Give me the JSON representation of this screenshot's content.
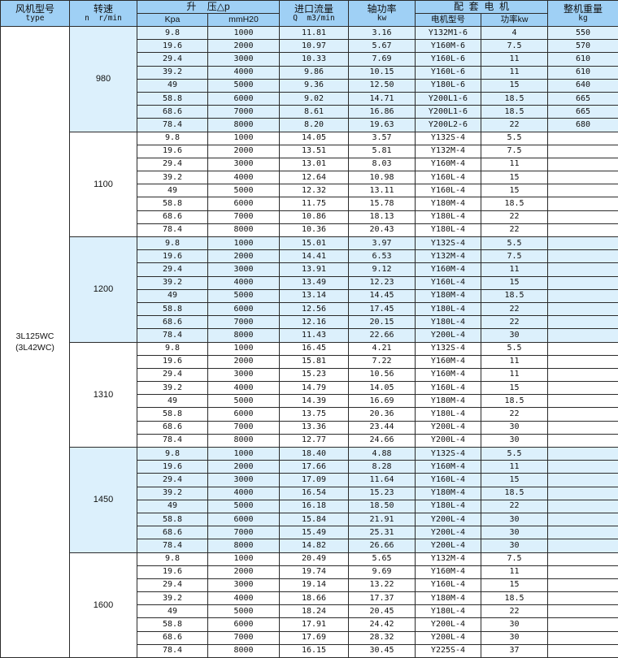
{
  "header": {
    "type_label": "风机型号",
    "type_sub": "type",
    "speed_label": "转速",
    "speed_sub": "n  r/min",
    "pressure_label": "升    压△p",
    "kpa_label": "Kpa",
    "mmh2o_label": "mmH20",
    "flow_label": "进口流量",
    "flow_sub": "Q  m3/min",
    "shaft_power_label": "轴功率",
    "shaft_power_sub": "kw",
    "motor_label": "配  套  电  机",
    "motor_model_label": "电机型号",
    "motor_power_label": "功率kw",
    "weight_label": "整机重量",
    "weight_sub": "kg"
  },
  "model": {
    "name": "3L125WC",
    "alt": "(3L42WC)"
  },
  "colors": {
    "header": "#9fd0f5",
    "shaded_row": "#dcf0fc",
    "border": "#2b2b2b"
  },
  "groups": [
    {
      "speed": "980",
      "shaded": true,
      "rows": [
        [
          "9.8",
          "1000",
          "11.81",
          "3.16",
          "Y132M1-6",
          "4",
          "550"
        ],
        [
          "19.6",
          "2000",
          "10.97",
          "5.67",
          "Y160M-6",
          "7.5",
          "570"
        ],
        [
          "29.4",
          "3000",
          "10.33",
          "7.69",
          "Y160L-6",
          "11",
          "610"
        ],
        [
          "39.2",
          "4000",
          "9.86",
          "10.15",
          "Y160L-6",
          "11",
          "610"
        ],
        [
          "49",
          "5000",
          "9.36",
          "12.50",
          "Y180L-6",
          "15",
          "640"
        ],
        [
          "58.8",
          "6000",
          "9.02",
          "14.71",
          "Y200L1-6",
          "18.5",
          "665"
        ],
        [
          "68.6",
          "7000",
          "8.61",
          "16.86",
          "Y200L1-6",
          "18.5",
          "665"
        ],
        [
          "78.4",
          "8000",
          "8.20",
          "19.63",
          "Y200L2-6",
          "22",
          "680"
        ]
      ]
    },
    {
      "speed": "1100",
      "shaded": false,
      "rows": [
        [
          "9.8",
          "1000",
          "14.05",
          "3.57",
          "Y132S-4",
          "5.5",
          ""
        ],
        [
          "19.6",
          "2000",
          "13.51",
          "5.81",
          "Y132M-4",
          "7.5",
          ""
        ],
        [
          "29.4",
          "3000",
          "13.01",
          "8.03",
          "Y160M-4",
          "11",
          ""
        ],
        [
          "39.2",
          "4000",
          "12.64",
          "10.98",
          "Y160L-4",
          "15",
          ""
        ],
        [
          "49",
          "5000",
          "12.32",
          "13.11",
          "Y160L-4",
          "15",
          ""
        ],
        [
          "58.8",
          "6000",
          "11.75",
          "15.78",
          "Y180M-4",
          "18.5",
          ""
        ],
        [
          "68.6",
          "7000",
          "10.86",
          "18.13",
          "Y180L-4",
          "22",
          ""
        ],
        [
          "78.4",
          "8000",
          "10.36",
          "20.43",
          "Y180L-4",
          "22",
          ""
        ]
      ]
    },
    {
      "speed": "1200",
      "shaded": true,
      "rows": [
        [
          "9.8",
          "1000",
          "15.01",
          "3.97",
          "Y132S-4",
          "5.5",
          ""
        ],
        [
          "19.6",
          "2000",
          "14.41",
          "6.53",
          "Y132M-4",
          "7.5",
          ""
        ],
        [
          "29.4",
          "3000",
          "13.91",
          "9.12",
          "Y160M-4",
          "11",
          ""
        ],
        [
          "39.2",
          "4000",
          "13.49",
          "12.23",
          "Y160L-4",
          "15",
          ""
        ],
        [
          "49",
          "5000",
          "13.14",
          "14.45",
          "Y180M-4",
          "18.5",
          ""
        ],
        [
          "58.8",
          "6000",
          "12.56",
          "17.45",
          "Y180L-4",
          "22",
          ""
        ],
        [
          "68.6",
          "7000",
          "12.16",
          "20.15",
          "Y180L-4",
          "22",
          ""
        ],
        [
          "78.4",
          "8000",
          "11.43",
          "22.66",
          "Y200L-4",
          "30",
          ""
        ]
      ]
    },
    {
      "speed": "1310",
      "shaded": false,
      "rows": [
        [
          "9.8",
          "1000",
          "16.45",
          "4.21",
          "Y132S-4",
          "5.5",
          ""
        ],
        [
          "19.6",
          "2000",
          "15.81",
          "7.22",
          "Y160M-4",
          "11",
          ""
        ],
        [
          "29.4",
          "3000",
          "15.23",
          "10.56",
          "Y160M-4",
          "11",
          ""
        ],
        [
          "39.2",
          "4000",
          "14.79",
          "14.05",
          "Y160L-4",
          "15",
          ""
        ],
        [
          "49",
          "5000",
          "14.39",
          "16.69",
          "Y180M-4",
          "18.5",
          ""
        ],
        [
          "58.8",
          "6000",
          "13.75",
          "20.36",
          "Y180L-4",
          "22",
          ""
        ],
        [
          "68.6",
          "7000",
          "13.36",
          "23.44",
          "Y200L-4",
          "30",
          ""
        ],
        [
          "78.4",
          "8000",
          "12.77",
          "24.66",
          "Y200L-4",
          "30",
          ""
        ]
      ]
    },
    {
      "speed": "1450",
      "shaded": true,
      "rows": [
        [
          "9.8",
          "1000",
          "18.40",
          "4.88",
          "Y132S-4",
          "5.5",
          ""
        ],
        [
          "19.6",
          "2000",
          "17.66",
          "8.28",
          "Y160M-4",
          "11",
          ""
        ],
        [
          "29.4",
          "3000",
          "17.09",
          "11.64",
          "Y160L-4",
          "15",
          ""
        ],
        [
          "39.2",
          "4000",
          "16.54",
          "15.23",
          "Y180M-4",
          "18.5",
          ""
        ],
        [
          "49",
          "5000",
          "16.18",
          "18.50",
          "Y180L-4",
          "22",
          ""
        ],
        [
          "58.8",
          "6000",
          "15.84",
          "21.91",
          "Y200L-4",
          "30",
          ""
        ],
        [
          "68.6",
          "7000",
          "15.49",
          "25.31",
          "Y200L-4",
          "30",
          ""
        ],
        [
          "78.4",
          "8000",
          "14.82",
          "26.66",
          "Y200L-4",
          "30",
          ""
        ]
      ]
    },
    {
      "speed": "1600",
      "shaded": false,
      "rows": [
        [
          "9.8",
          "1000",
          "20.49",
          "5.65",
          "Y132M-4",
          "7.5",
          ""
        ],
        [
          "19.6",
          "2000",
          "19.74",
          "9.69",
          "Y160M-4",
          "11",
          ""
        ],
        [
          "29.4",
          "3000",
          "19.14",
          "13.22",
          "Y160L-4",
          "15",
          ""
        ],
        [
          "39.2",
          "4000",
          "18.66",
          "17.37",
          "Y180M-4",
          "18.5",
          ""
        ],
        [
          "49",
          "5000",
          "18.24",
          "20.45",
          "Y180L-4",
          "22",
          ""
        ],
        [
          "58.8",
          "6000",
          "17.91",
          "24.42",
          "Y200L-4",
          "30",
          ""
        ],
        [
          "68.6",
          "7000",
          "17.69",
          "28.32",
          "Y200L-4",
          "30",
          ""
        ],
        [
          "78.4",
          "8000",
          "16.15",
          "30.45",
          "Y225S-4",
          "37",
          ""
        ]
      ]
    }
  ]
}
